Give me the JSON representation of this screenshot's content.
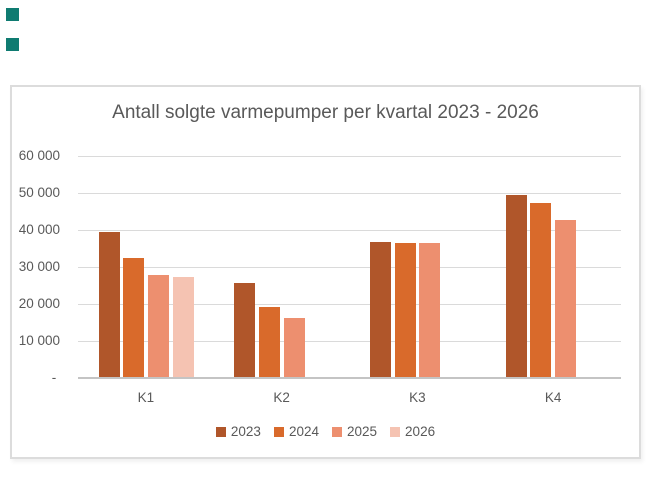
{
  "page": {
    "background": "#ffffff",
    "decorations": {
      "marker_color": "#0f7b71"
    }
  },
  "chart_style": {
    "text_color": "#595959",
    "border_color": "#dcdcdc",
    "gridline_color": "#dadada",
    "axis_line_color": "#c4c4c4",
    "background": "#ffffff"
  },
  "chart_data": {
    "type": "bar",
    "title": "Antall solgte varmepumper per kvartal 2023 - 2026",
    "categories": [
      "K1",
      "K2",
      "K3",
      "K4"
    ],
    "series": [
      {
        "name": "2023",
        "color": "#b0562a",
        "values": [
          39500,
          25700,
          36800,
          49500
        ]
      },
      {
        "name": "2024",
        "color": "#d96a2b",
        "values": [
          32300,
          19000,
          36400,
          47400
        ]
      },
      {
        "name": "2025",
        "color": "#ed8f6f",
        "values": [
          27800,
          16000,
          36400,
          42700
        ]
      },
      {
        "name": "2026",
        "color": "#f5c3b2",
        "values": [
          27300,
          null,
          null,
          null
        ]
      }
    ],
    "xlabel": "",
    "ylabel": "",
    "ylim": [
      0,
      60000
    ],
    "ytick_interval": 10000,
    "yticks": [
      {
        "value": 0,
        "label": "- "
      },
      {
        "value": 10000,
        "label": "10 000"
      },
      {
        "value": 20000,
        "label": "20 000"
      },
      {
        "value": 30000,
        "label": "30 000"
      },
      {
        "value": 40000,
        "label": "40 000"
      },
      {
        "value": 50000,
        "label": "50 000"
      },
      {
        "value": 60000,
        "label": "60 000"
      }
    ],
    "grid": true,
    "legend_position": "bottom",
    "legend_entries": [
      "2023",
      "2024",
      "2025",
      "2026"
    ]
  }
}
